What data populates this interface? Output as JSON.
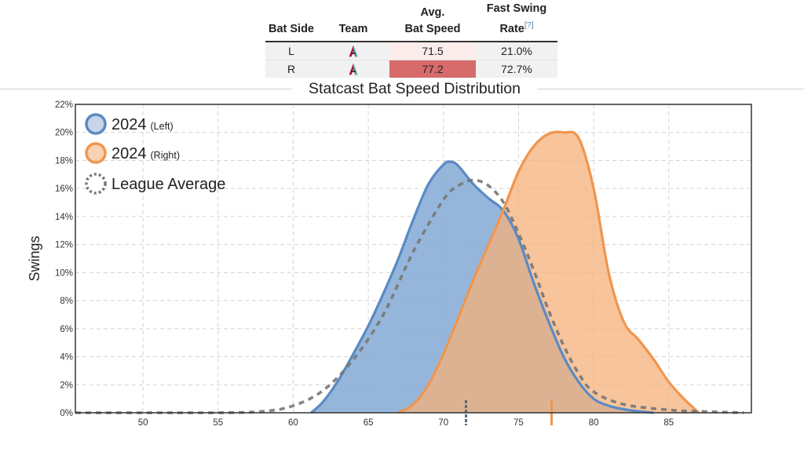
{
  "table": {
    "headers": {
      "bat_side": "Bat Side",
      "team": "Team",
      "avg_line1": "Avg.",
      "avg_line2": "Bat Speed",
      "fast_line1": "Fast Swing",
      "fast_line2": "Rate",
      "help": "[?]"
    },
    "rows": [
      {
        "side": "L",
        "team_logo": "diamondbacks-logo-icon",
        "bat_speed": "71.5",
        "fast_swing_rate": "21.0%",
        "cell_color": "#fbeceb"
      },
      {
        "side": "R",
        "team_logo": "diamondbacks-logo-icon",
        "bat_speed": "77.2",
        "fast_swing_rate": "72.7%",
        "cell_color": "#d76b6b"
      }
    ]
  },
  "chart_data": {
    "type": "area",
    "title": "Statcast Bat Speed Distribution",
    "xlabel": "",
    "ylabel": "Swings",
    "xlim": [
      45.5,
      90.5
    ],
    "ylim": [
      0,
      22
    ],
    "x_ticks": [
      50,
      55,
      60,
      65,
      70,
      75,
      80,
      85
    ],
    "y_ticks": [
      0,
      2,
      4,
      6,
      8,
      10,
      12,
      14,
      16,
      18,
      20,
      22
    ],
    "y_tick_suffix": "%",
    "grid": true,
    "legend": "top-left",
    "series": [
      {
        "name": "League Average",
        "label": "League Average",
        "style": "dashed-line",
        "color": "#777777",
        "points": [
          [
            45.5,
            0
          ],
          [
            50,
            0
          ],
          [
            55,
            0
          ],
          [
            58,
            0.1
          ],
          [
            60,
            0.5
          ],
          [
            62,
            1.6
          ],
          [
            64,
            3.8
          ],
          [
            66,
            7.0
          ],
          [
            68,
            11.5
          ],
          [
            70,
            15.2
          ],
          [
            71,
            16.2
          ],
          [
            72,
            16.6
          ],
          [
            73,
            16.2
          ],
          [
            74,
            15.0
          ],
          [
            75,
            12.8
          ],
          [
            76,
            10.2
          ],
          [
            77,
            7.3
          ],
          [
            78,
            4.8
          ],
          [
            79,
            2.8
          ],
          [
            80,
            1.5
          ],
          [
            82,
            0.6
          ],
          [
            85,
            0.2
          ],
          [
            87,
            0.1
          ],
          [
            90,
            0
          ]
        ]
      },
      {
        "name": "2024 (Left)",
        "label": "2024",
        "label_small": "(Left)",
        "style": "filled-area",
        "color": "#5b8ac4",
        "fill": "#8aaed6",
        "mean": 71.5,
        "points": [
          [
            61.2,
            0
          ],
          [
            62,
            0.8
          ],
          [
            63,
            2.3
          ],
          [
            64,
            4.2
          ],
          [
            65,
            6.2
          ],
          [
            66,
            8.5
          ],
          [
            67,
            11.0
          ],
          [
            68,
            13.8
          ],
          [
            69,
            16.3
          ],
          [
            70,
            17.7
          ],
          [
            70.5,
            17.9
          ],
          [
            71,
            17.6
          ],
          [
            72,
            16.3
          ],
          [
            73,
            15.3
          ],
          [
            74,
            14.4
          ],
          [
            75,
            12.4
          ],
          [
            76,
            9.3
          ],
          [
            77,
            6.5
          ],
          [
            78,
            4.0
          ],
          [
            79,
            2.2
          ],
          [
            80,
            1.0
          ],
          [
            81,
            0.5
          ],
          [
            82,
            0.25
          ],
          [
            83,
            0.1
          ],
          [
            84,
            0
          ]
        ]
      },
      {
        "name": "2024 (Right)",
        "label": "2024",
        "label_small": "(Right)",
        "style": "filled-area",
        "color": "#f0954e",
        "fill": "#f5b07a",
        "mean": 77.2,
        "points": [
          [
            67,
            0
          ],
          [
            68,
            0.6
          ],
          [
            69,
            2.0
          ],
          [
            70,
            4.2
          ],
          [
            71,
            6.8
          ],
          [
            72,
            9.5
          ],
          [
            73,
            12.0
          ],
          [
            74,
            14.5
          ],
          [
            75,
            17.2
          ],
          [
            76,
            19.0
          ],
          [
            77,
            19.9
          ],
          [
            78,
            20.0
          ],
          [
            79,
            19.6
          ],
          [
            80,
            16.0
          ],
          [
            81,
            10.0
          ],
          [
            82,
            6.5
          ],
          [
            83,
            5.2
          ],
          [
            84,
            3.8
          ],
          [
            85,
            2.2
          ],
          [
            86,
            1.0
          ],
          [
            87,
            0
          ]
        ]
      }
    ]
  }
}
